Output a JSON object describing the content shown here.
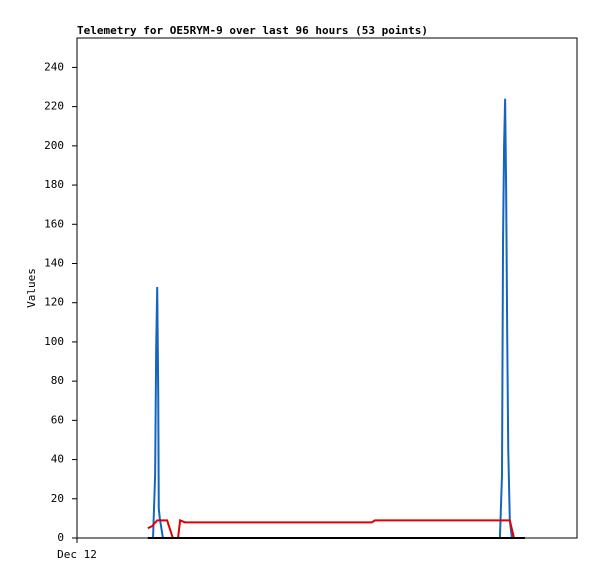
{
  "chart_data": {
    "type": "line",
    "title": "Telemetry for OE5RYM-9 over last 96 hours (53 points)",
    "y_label": "Values",
    "xlim": [
      0,
      96
    ],
    "xticks": [
      {
        "value": 0,
        "label": "Dec 12"
      }
    ],
    "ylim": [
      0,
      255
    ],
    "yticks": [
      0,
      20,
      40,
      60,
      80,
      100,
      120,
      140,
      160,
      180,
      200,
      220,
      240
    ],
    "series": [
      {
        "color": "#1565c0",
        "x": [
          14.6,
          15.0,
          15.2,
          15.4,
          15.6,
          15.7,
          15.9,
          16.5,
          81.2,
          81.6,
          81.8,
          82.0,
          82.2,
          82.4,
          82.6,
          82.8,
          83.1,
          83.5
        ],
        "values": [
          0,
          32,
          96,
          128,
          72,
          15,
          10,
          0,
          0,
          32,
          152,
          200,
          224,
          176,
          104,
          45,
          9,
          0
        ]
      },
      {
        "color": "#e00000",
        "x": [
          13.6,
          14.4,
          15.4,
          17.3,
          18.4,
          19.4,
          19.8,
          20.7,
          56.6,
          57.2,
          83.1,
          83.9
        ],
        "values": [
          5,
          6,
          9,
          9,
          0,
          0,
          9,
          8,
          8,
          9,
          9,
          0
        ]
      },
      {
        "color": "#000000",
        "x": [
          13.6,
          86.0
        ],
        "values": [
          0,
          0
        ]
      }
    ]
  }
}
